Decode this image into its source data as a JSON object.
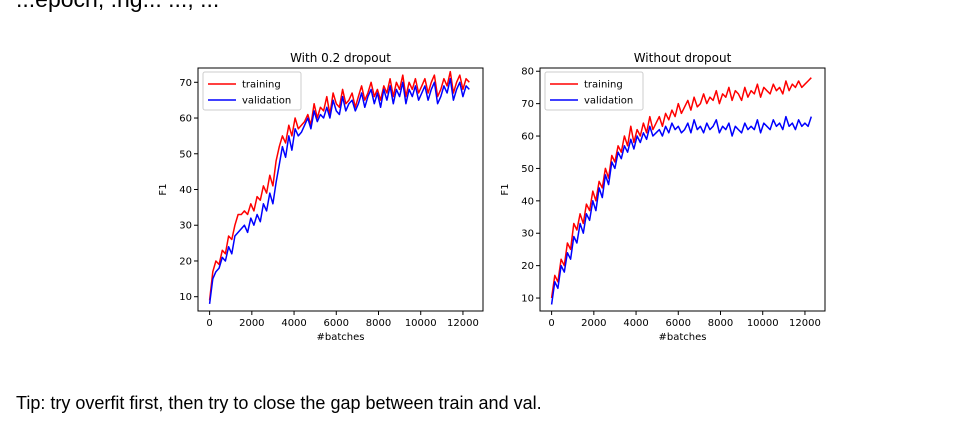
{
  "page": {
    "top_text": "...epoch, .ng... ..., ...",
    "tip": "Tip: try overfit first, then try to close the gap between train and val."
  },
  "colors": {
    "training": "#ff0000",
    "validation": "#0000ff"
  },
  "chart_data": [
    {
      "type": "line",
      "title": "With 0.2 dropout",
      "xlabel": "#batches",
      "ylabel": "F1",
      "xlim": [
        -550,
        12950
      ],
      "ylim": [
        6,
        74
      ],
      "xticks": [
        0,
        2000,
        4000,
        6000,
        8000,
        10000,
        12000
      ],
      "yticks": [
        10,
        20,
        30,
        40,
        50,
        60,
        70
      ],
      "legend": "top-left",
      "grid": false,
      "series": [
        {
          "name": "training",
          "color": "#ff0000",
          "x": [
            0,
            150,
            300,
            450,
            600,
            750,
            900,
            1050,
            1200,
            1350,
            1500,
            1650,
            1800,
            1950,
            2100,
            2250,
            2400,
            2550,
            2700,
            2850,
            3000,
            3150,
            3300,
            3450,
            3600,
            3750,
            3900,
            4050,
            4200,
            4350,
            4500,
            4650,
            4800,
            4950,
            5100,
            5250,
            5400,
            5550,
            5700,
            5850,
            6000,
            6150,
            6300,
            6450,
            6600,
            6750,
            6900,
            7050,
            7200,
            7350,
            7500,
            7650,
            7800,
            7950,
            8100,
            8250,
            8400,
            8550,
            8700,
            8850,
            9000,
            9150,
            9300,
            9450,
            9600,
            9750,
            9900,
            10050,
            10200,
            10350,
            10500,
            10650,
            10800,
            10950,
            11100,
            11250,
            11400,
            11550,
            11700,
            11850,
            12000,
            12150,
            12300
          ],
          "y": [
            9,
            17,
            20,
            19,
            23,
            22,
            27,
            26,
            30,
            33,
            33,
            34,
            33,
            36,
            34,
            38,
            37,
            41,
            39,
            44,
            41,
            48,
            52,
            55,
            53,
            58,
            55,
            60,
            57,
            58,
            59,
            61,
            58,
            64,
            60,
            63,
            62,
            66,
            61,
            67,
            64,
            63,
            68,
            64,
            65,
            67,
            63,
            66,
            69,
            65,
            67,
            70,
            66,
            68,
            65,
            69,
            67,
            71,
            66,
            70,
            68,
            72,
            66,
            70,
            68,
            71,
            67,
            69,
            71,
            67,
            70,
            72,
            66,
            68,
            71,
            69,
            73,
            67,
            70,
            72,
            68,
            71,
            70
          ]
        },
        {
          "name": "validation",
          "color": "#0000ff",
          "x": [
            0,
            150,
            300,
            450,
            600,
            750,
            900,
            1050,
            1200,
            1350,
            1500,
            1650,
            1800,
            1950,
            2100,
            2250,
            2400,
            2550,
            2700,
            2850,
            3000,
            3150,
            3300,
            3450,
            3600,
            3750,
            3900,
            4050,
            4200,
            4350,
            4500,
            4650,
            4800,
            4950,
            5100,
            5250,
            5400,
            5550,
            5700,
            5850,
            6000,
            6150,
            6300,
            6450,
            6600,
            6750,
            6900,
            7050,
            7200,
            7350,
            7500,
            7650,
            7800,
            7950,
            8100,
            8250,
            8400,
            8550,
            8700,
            8850,
            9000,
            9150,
            9300,
            9450,
            9600,
            9750,
            9900,
            10050,
            10200,
            10350,
            10500,
            10650,
            10800,
            10950,
            11100,
            11250,
            11400,
            11550,
            11700,
            11850,
            12000,
            12150,
            12300
          ],
          "y": [
            8,
            15,
            17,
            18,
            21,
            20,
            24,
            22,
            27,
            28,
            29,
            30,
            28,
            32,
            30,
            33,
            31,
            36,
            34,
            39,
            36,
            42,
            47,
            52,
            49,
            55,
            51,
            57,
            55,
            56,
            58,
            60,
            57,
            62,
            59,
            61,
            60,
            63,
            60,
            65,
            62,
            61,
            66,
            62,
            64,
            65,
            62,
            64,
            67,
            63,
            66,
            68,
            64,
            67,
            63,
            68,
            65,
            69,
            64,
            68,
            66,
            70,
            64,
            68,
            66,
            69,
            65,
            67,
            69,
            65,
            68,
            70,
            64,
            66,
            69,
            67,
            71,
            65,
            68,
            70,
            66,
            69,
            68
          ]
        }
      ]
    },
    {
      "type": "line",
      "title": "Without dropout",
      "xlabel": "#batches",
      "ylabel": "F1",
      "xlim": [
        -550,
        12950
      ],
      "ylim": [
        6,
        81
      ],
      "xticks": [
        0,
        2000,
        4000,
        6000,
        8000,
        10000,
        12000
      ],
      "yticks": [
        10,
        20,
        30,
        40,
        50,
        60,
        70,
        80
      ],
      "legend": "top-left",
      "grid": false,
      "series": [
        {
          "name": "training",
          "color": "#ff0000",
          "x": [
            0,
            150,
            300,
            450,
            600,
            750,
            900,
            1050,
            1200,
            1350,
            1500,
            1650,
            1800,
            1950,
            2100,
            2250,
            2400,
            2550,
            2700,
            2850,
            3000,
            3150,
            3300,
            3450,
            3600,
            3750,
            3900,
            4050,
            4200,
            4350,
            4500,
            4650,
            4800,
            4950,
            5100,
            5250,
            5400,
            5550,
            5700,
            5850,
            6000,
            6150,
            6300,
            6450,
            6600,
            6750,
            6900,
            7050,
            7200,
            7350,
            7500,
            7650,
            7800,
            7950,
            8100,
            8250,
            8400,
            8550,
            8700,
            8850,
            9000,
            9150,
            9300,
            9450,
            9600,
            9750,
            9900,
            10050,
            10200,
            10350,
            10500,
            10650,
            10800,
            10950,
            11100,
            11250,
            11400,
            11550,
            11700,
            11850,
            12000,
            12150,
            12300
          ],
          "y": [
            10,
            17,
            15,
            22,
            20,
            27,
            25,
            33,
            31,
            36,
            33,
            39,
            37,
            43,
            40,
            46,
            44,
            50,
            47,
            54,
            52,
            57,
            55,
            60,
            57,
            63,
            58,
            62,
            60,
            64,
            61,
            66,
            62,
            64,
            66,
            63,
            67,
            65,
            68,
            66,
            70,
            67,
            69,
            71,
            68,
            72,
            69,
            70,
            73,
            70,
            72,
            71,
            74,
            70,
            73,
            72,
            75,
            71,
            74,
            73,
            71,
            75,
            72,
            74,
            73,
            76,
            72,
            75,
            74,
            73,
            76,
            74,
            75,
            73,
            77,
            74,
            76,
            75,
            77,
            75,
            76,
            77,
            78
          ]
        },
        {
          "name": "validation",
          "color": "#0000ff",
          "x": [
            0,
            150,
            300,
            450,
            600,
            750,
            900,
            1050,
            1200,
            1350,
            1500,
            1650,
            1800,
            1950,
            2100,
            2250,
            2400,
            2550,
            2700,
            2850,
            3000,
            3150,
            3300,
            3450,
            3600,
            3750,
            3900,
            4050,
            4200,
            4350,
            4500,
            4650,
            4800,
            4950,
            5100,
            5250,
            5400,
            5550,
            5700,
            5850,
            6000,
            6150,
            6300,
            6450,
            6600,
            6750,
            6900,
            7050,
            7200,
            7350,
            7500,
            7650,
            7800,
            7950,
            8100,
            8250,
            8400,
            8550,
            8700,
            8850,
            9000,
            9150,
            9300,
            9450,
            9600,
            9750,
            9900,
            10050,
            10200,
            10350,
            10500,
            10650,
            10800,
            10950,
            11100,
            11250,
            11400,
            11550,
            11700,
            11850,
            12000,
            12150,
            12300
          ],
          "y": [
            8,
            15,
            13,
            20,
            18,
            24,
            22,
            29,
            27,
            33,
            30,
            36,
            34,
            40,
            37,
            44,
            41,
            48,
            45,
            52,
            50,
            55,
            53,
            57,
            55,
            59,
            56,
            60,
            58,
            61,
            59,
            63,
            60,
            61,
            62,
            60,
            63,
            61,
            64,
            62,
            63,
            61,
            62,
            64,
            61,
            65,
            62,
            63,
            61,
            64,
            62,
            63,
            65,
            61,
            63,
            62,
            64,
            60,
            63,
            62,
            61,
            64,
            62,
            63,
            62,
            65,
            61,
            64,
            63,
            62,
            65,
            63,
            64,
            62,
            66,
            63,
            64,
            62,
            65,
            63,
            64,
            63,
            66
          ]
        }
      ]
    }
  ]
}
